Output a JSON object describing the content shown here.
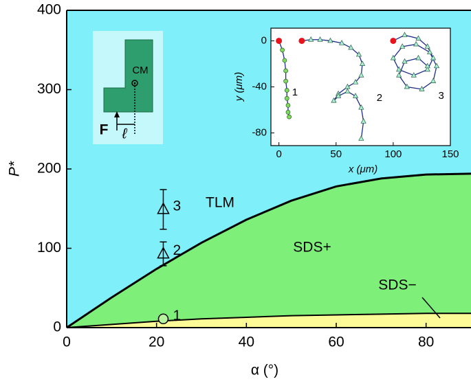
{
  "chart_data": [
    {
      "type": "area",
      "x_label": "α (°)",
      "y_label": "P*",
      "xlim": [
        0,
        90
      ],
      "ylim": [
        0,
        400
      ],
      "xticks": [
        0,
        20,
        40,
        60,
        80
      ],
      "yticks": [
        0,
        100,
        200,
        300,
        400
      ],
      "background": "#7ff0f9",
      "background_label": "TLM",
      "series": [
        {
          "name": "SDS+",
          "color": "#7ef07a",
          "x": [
            0,
            10,
            20,
            30,
            40,
            50,
            60,
            70,
            80,
            90
          ],
          "values": [
            0,
            38,
            74,
            107,
            136,
            160,
            178,
            188,
            193,
            194
          ]
        },
        {
          "name": "SDS−",
          "color": "#fdfb98",
          "x": [
            0,
            10,
            20,
            30,
            40,
            50,
            60,
            70,
            80,
            90
          ],
          "values": [
            0,
            4,
            8,
            11,
            13,
            15,
            16,
            17,
            18,
            18
          ]
        }
      ],
      "points": {
        "x": [
          21.5,
          21.5,
          21.5
        ],
        "values": [
          11,
          93,
          149
        ],
        "errors": [
          null,
          15,
          25
        ],
        "labels": [
          "1",
          "2",
          "3"
        ],
        "markers": [
          "circle",
          "triangle",
          "triangle"
        ],
        "color": "#b8f4a0"
      },
      "diagram_labels": {
        "cm": "CM",
        "force": "F",
        "length": "ℓ"
      }
    },
    {
      "type": "line",
      "x_label": "x (μm)",
      "y_label": "y (μm)",
      "xlim": [
        -7,
        150
      ],
      "ylim": [
        -91,
        11
      ],
      "xticks": [
        0,
        50,
        100,
        150
      ],
      "yticks": [
        0,
        -40,
        -80
      ],
      "start_color": "#e8141c",
      "series": [
        {
          "name": "1",
          "color": "#1b2d8c",
          "marker": "circle",
          "marker_color": "#7ddc5a",
          "x": [
            0,
            3,
            5,
            6,
            6,
            7,
            7,
            8,
            8,
            9
          ],
          "y": [
            0,
            -8,
            -17,
            -26,
            -35,
            -43,
            -50,
            -56,
            -62,
            -66
          ]
        },
        {
          "name": "2",
          "color": "#1b2d8c",
          "marker": "triangle",
          "marker_color": "#a9f0cf",
          "x": [
            20,
            28,
            36,
            45,
            55,
            63,
            70,
            73,
            72,
            67,
            60,
            52,
            48,
            52,
            60,
            67,
            72,
            74,
            72
          ],
          "y": [
            0,
            1,
            1,
            0,
            -2,
            -6,
            -12,
            -20,
            -30,
            -36,
            -40,
            -46,
            -52,
            -48,
            -44,
            -48,
            -58,
            -70,
            -85
          ]
        },
        {
          "name": "3",
          "color": "#1b2d8c",
          "marker": "triangle",
          "marker_color": "#a9f0cf",
          "x": [
            100,
            110,
            122,
            130,
            135,
            130,
            118,
            105,
            100,
            108,
            120,
            132,
            138,
            135,
            125,
            112,
            105,
            110,
            122,
            130
          ],
          "y": [
            0,
            5,
            2,
            -5,
            -15,
            -25,
            -30,
            -25,
            -15,
            -5,
            -3,
            -10,
            -22,
            -35,
            -42,
            -40,
            -30,
            -18,
            -15,
            -22
          ]
        }
      ]
    }
  ]
}
